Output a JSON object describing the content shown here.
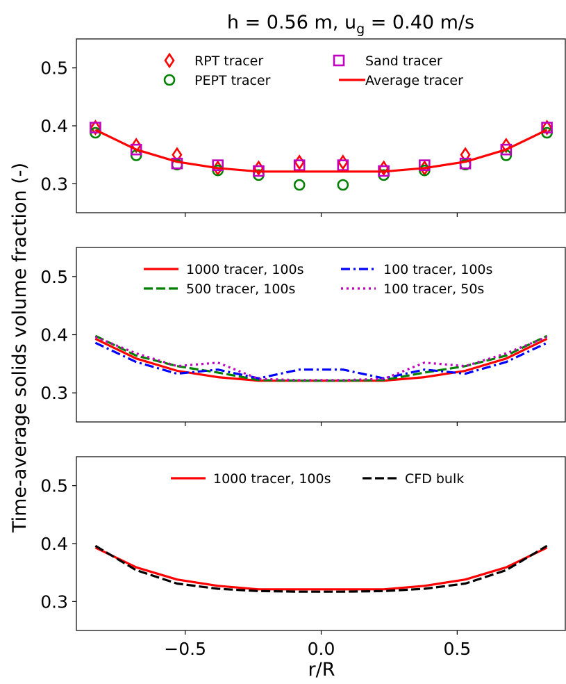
{
  "figure": {
    "title_main": "h = 0.56 m, u",
    "title_sub": "g",
    "title_rest": " = 0.40 m/s",
    "ylabel": "Time-average solids volume fraction (-)",
    "xlabel": "r/R"
  },
  "colors": {
    "red": "#ff0000",
    "green": "#008000",
    "magenta": "#bf00bf",
    "blue": "#0000ff",
    "black": "#000000"
  },
  "chart_data": [
    {
      "type": "line",
      "panel": "top",
      "xlim": [
        -0.9,
        0.9
      ],
      "ylim": [
        0.25,
        0.55
      ],
      "yticks": [
        0.3,
        0.4,
        0.5
      ],
      "ytick_labels": [
        "0.3",
        "0.4",
        "0.5"
      ],
      "xticks": [
        -0.5,
        0.0,
        0.5
      ],
      "xtick_labels": [],
      "legend_position": "top-center",
      "x": [
        -0.83,
        -0.68,
        -0.53,
        -0.38,
        -0.23,
        -0.08,
        0.08,
        0.23,
        0.38,
        0.53,
        0.68,
        0.83
      ],
      "series": [
        {
          "name": "RPT tracer",
          "marker": "diamond",
          "color": "red",
          "values": [
            0.397,
            0.366,
            0.35,
            0.327,
            0.327,
            0.337,
            0.337,
            0.327,
            0.327,
            0.35,
            0.366,
            0.397
          ]
        },
        {
          "name": "PEPT tracer",
          "marker": "circle",
          "color": "green",
          "values": [
            0.388,
            0.349,
            0.333,
            0.323,
            0.315,
            0.298,
            0.298,
            0.315,
            0.323,
            0.333,
            0.349,
            0.388
          ]
        },
        {
          "name": "Sand tracer",
          "marker": "square",
          "color": "magenta",
          "values": [
            0.397,
            0.359,
            0.335,
            0.332,
            0.322,
            0.332,
            0.332,
            0.322,
            0.332,
            0.335,
            0.359,
            0.397
          ]
        },
        {
          "name": "Average tracer",
          "style": "solid",
          "color": "red",
          "values": [
            0.393,
            0.359,
            0.338,
            0.327,
            0.321,
            0.321,
            0.321,
            0.321,
            0.327,
            0.338,
            0.359,
            0.393
          ]
        }
      ]
    },
    {
      "type": "line",
      "panel": "middle",
      "xlim": [
        -0.9,
        0.9
      ],
      "ylim": [
        0.25,
        0.55
      ],
      "yticks": [
        0.3,
        0.4,
        0.5
      ],
      "ytick_labels": [
        "0.3",
        "0.4",
        "0.5"
      ],
      "xticks": [
        -0.5,
        0.0,
        0.5
      ],
      "xtick_labels": [],
      "legend_position": "top-center",
      "x": [
        -0.83,
        -0.68,
        -0.53,
        -0.38,
        -0.23,
        -0.08,
        0.08,
        0.23,
        0.38,
        0.53,
        0.68,
        0.83
      ],
      "series": [
        {
          "name": "1000 tracer, 100s",
          "style": "solid",
          "color": "red",
          "values": [
            0.393,
            0.359,
            0.338,
            0.327,
            0.321,
            0.321,
            0.321,
            0.321,
            0.327,
            0.338,
            0.359,
            0.393
          ]
        },
        {
          "name": "500 tracer, 100s",
          "style": "dashed",
          "color": "green",
          "values": [
            0.398,
            0.364,
            0.346,
            0.335,
            0.322,
            0.321,
            0.321,
            0.322,
            0.335,
            0.346,
            0.364,
            0.398
          ]
        },
        {
          "name": "100 tracer, 100s",
          "style": "dashdot",
          "color": "blue",
          "values": [
            0.386,
            0.353,
            0.333,
            0.34,
            0.325,
            0.34,
            0.34,
            0.325,
            0.34,
            0.333,
            0.353,
            0.386
          ]
        },
        {
          "name": "100 tracer, 50s",
          "style": "dotted",
          "color": "magenta",
          "values": [
            0.396,
            0.368,
            0.346,
            0.352,
            0.324,
            0.322,
            0.322,
            0.324,
            0.352,
            0.346,
            0.368,
            0.396
          ]
        }
      ]
    },
    {
      "type": "line",
      "panel": "bottom",
      "xlim": [
        -0.9,
        0.9
      ],
      "ylim": [
        0.25,
        0.55
      ],
      "yticks": [
        0.3,
        0.4,
        0.5
      ],
      "ytick_labels": [
        "0.3",
        "0.4",
        "0.5"
      ],
      "xticks": [
        -0.5,
        0.0,
        0.5
      ],
      "xtick_labels": [
        "−0.5",
        "0.0",
        "0.5"
      ],
      "legend_position": "top-center",
      "x": [
        -0.83,
        -0.68,
        -0.53,
        -0.38,
        -0.23,
        -0.08,
        0.08,
        0.23,
        0.38,
        0.53,
        0.68,
        0.83
      ],
      "series": [
        {
          "name": "1000 tracer, 100s",
          "style": "solid",
          "color": "red",
          "values": [
            0.393,
            0.359,
            0.338,
            0.327,
            0.321,
            0.321,
            0.321,
            0.321,
            0.327,
            0.338,
            0.359,
            0.393
          ]
        },
        {
          "name": "CFD bulk",
          "style": "dashed",
          "color": "black",
          "values": [
            0.396,
            0.354,
            0.331,
            0.322,
            0.318,
            0.317,
            0.317,
            0.318,
            0.322,
            0.331,
            0.354,
            0.396
          ]
        }
      ]
    }
  ]
}
